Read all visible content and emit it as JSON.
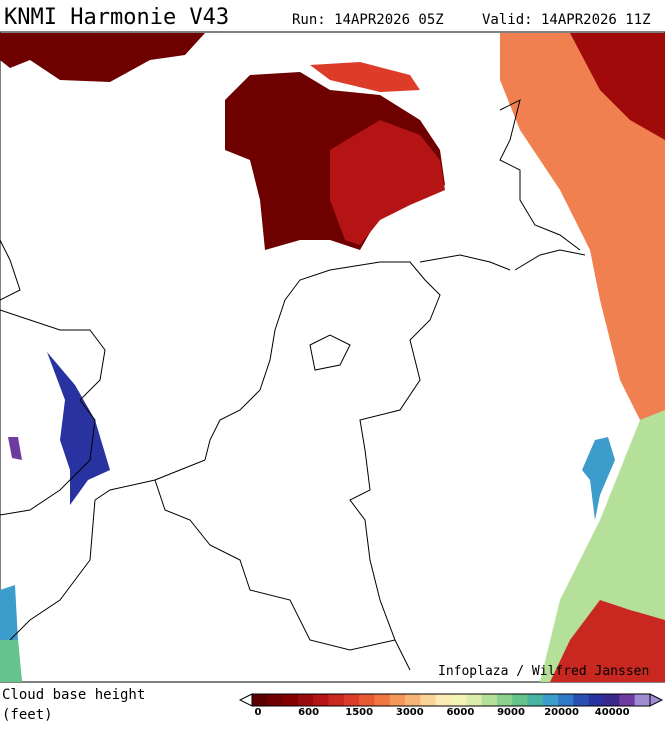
{
  "header": {
    "title": "KNMI Harmonie V43",
    "run": "Run: 14APR2026 05Z",
    "valid": "Valid: 14APR2026 11Z"
  },
  "credit": "Infoplaza / Wilfred Janssen",
  "legend": {
    "label_line1": "Cloud base height",
    "label_line2": "(feet)",
    "colors": [
      "#5a0000",
      "#6e0000",
      "#840000",
      "#9a0a0a",
      "#b41414",
      "#c82820",
      "#dc3c28",
      "#e85a32",
      "#f07840",
      "#f5965a",
      "#f8b478",
      "#fad296",
      "#fcecb4",
      "#f4f4b4",
      "#dcecaa",
      "#b4e09a",
      "#8cd28c",
      "#64c48c",
      "#46b4a0",
      "#3c9ccc",
      "#3078c8",
      "#2850b4",
      "#2832a0",
      "#3c288c",
      "#6e3ca0",
      "#a08cd2"
    ],
    "labels": [
      "0",
      "600",
      "1500",
      "3000",
      "6000",
      "9000",
      "20000",
      "40000"
    ]
  }
}
